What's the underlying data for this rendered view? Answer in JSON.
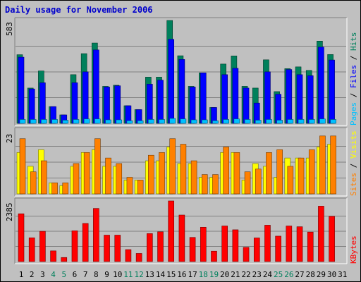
{
  "title": "Daily usage for November 2006",
  "colors": {
    "hits": "#00805c",
    "files": "#0000ff",
    "pages": "#00c0ff",
    "visits": "#ffff00",
    "sites": "#ff8000",
    "kbytes": "#ff0000",
    "weekend_day_label": "#00805c"
  },
  "chart_data": [
    {
      "type": "bar",
      "panel": "pages-files-hits",
      "ylim": [
        0,
        583
      ],
      "max_label": "583",
      "side_label": [
        "Pages",
        " / ",
        "Files",
        " / ",
        "Hits"
      ],
      "categories": [
        "1",
        "2",
        "3",
        "4",
        "5",
        "6",
        "7",
        "8",
        "9",
        "10",
        "11",
        "12",
        "13",
        "14",
        "15",
        "16",
        "17",
        "18",
        "19",
        "20",
        "21",
        "22",
        "23",
        "24",
        "25",
        "26",
        "27",
        "28",
        "29",
        "30",
        "31"
      ],
      "weekend_days": [
        "4",
        "5",
        "11",
        "12",
        "18",
        "19",
        "25",
        "26"
      ],
      "series": [
        {
          "name": "Hits",
          "values": [
            389,
            200,
            297,
            95,
            48,
            276,
            395,
            455,
            210,
            216,
            100,
            78,
            262,
            262,
            583,
            383,
            210,
            286,
            90,
            336,
            382,
            210,
            200,
            360,
            180,
            310,
            320,
            300,
            466,
            390,
            0
          ]
        },
        {
          "name": "Files",
          "values": [
            375,
            195,
            230,
            95,
            48,
            230,
            292,
            416,
            206,
            213,
            100,
            78,
            222,
            245,
            476,
            362,
            206,
            286,
            90,
            276,
            312,
            200,
            115,
            292,
            165,
            305,
            276,
            270,
            432,
            359,
            0
          ]
        },
        {
          "name": "Pages",
          "values": [
            22,
            22,
            22,
            22,
            18,
            22,
            25,
            25,
            20,
            20,
            15,
            15,
            22,
            22,
            28,
            25,
            20,
            20,
            15,
            22,
            25,
            22,
            18,
            22,
            18,
            22,
            22,
            22,
            25,
            22,
            0
          ]
        }
      ]
    },
    {
      "type": "bar",
      "panel": "visits-sites",
      "ylim": [
        0,
        23
      ],
      "max_label": "23",
      "side_label": [
        "Sites",
        " / ",
        "Visits"
      ],
      "categories": [
        "1",
        "2",
        "3",
        "4",
        "5",
        "6",
        "7",
        "8",
        "9",
        "10",
        "11",
        "12",
        "13",
        "14",
        "15",
        "16",
        "17",
        "18",
        "19",
        "20",
        "21",
        "22",
        "23",
        "24",
        "25",
        "26",
        "27",
        "28",
        "29",
        "30",
        "31"
      ],
      "series": [
        {
          "name": "Visits",
          "values": [
            15,
            10,
            16,
            4,
            3,
            10,
            15,
            16,
            10,
            10,
            5,
            5,
            12,
            12,
            17,
            11,
            11,
            6,
            6,
            15,
            15,
            5,
            11,
            10,
            6,
            13,
            13,
            13,
            17,
            18,
            0
          ]
        },
        {
          "name": "Sites",
          "values": [
            20,
            8,
            12,
            4,
            4,
            11,
            15,
            20,
            13,
            11,
            6,
            5,
            14,
            15,
            20,
            18,
            12,
            7,
            7,
            17,
            15,
            8,
            9,
            15,
            16,
            10,
            13,
            16,
            21,
            21,
            0
          ]
        }
      ]
    },
    {
      "type": "bar",
      "panel": "kbytes",
      "ylim": [
        0,
        2385
      ],
      "max_label": "2385",
      "side_label": [
        "KBytes"
      ],
      "categories": [
        "1",
        "2",
        "3",
        "4",
        "5",
        "6",
        "7",
        "8",
        "9",
        "10",
        "11",
        "12",
        "13",
        "14",
        "15",
        "16",
        "17",
        "18",
        "19",
        "20",
        "21",
        "22",
        "23",
        "24",
        "25",
        "26",
        "27",
        "28",
        "29",
        "30",
        "31"
      ],
      "series": [
        {
          "name": "KBytes",
          "values": [
            1880,
            935,
            1190,
            420,
            160,
            1210,
            1500,
            2090,
            1040,
            1040,
            470,
            320,
            1100,
            1170,
            2385,
            1830,
            950,
            1350,
            410,
            1400,
            1250,
            560,
            930,
            1430,
            1000,
            1400,
            1370,
            1160,
            2180,
            1780,
            0
          ]
        }
      ]
    }
  ]
}
